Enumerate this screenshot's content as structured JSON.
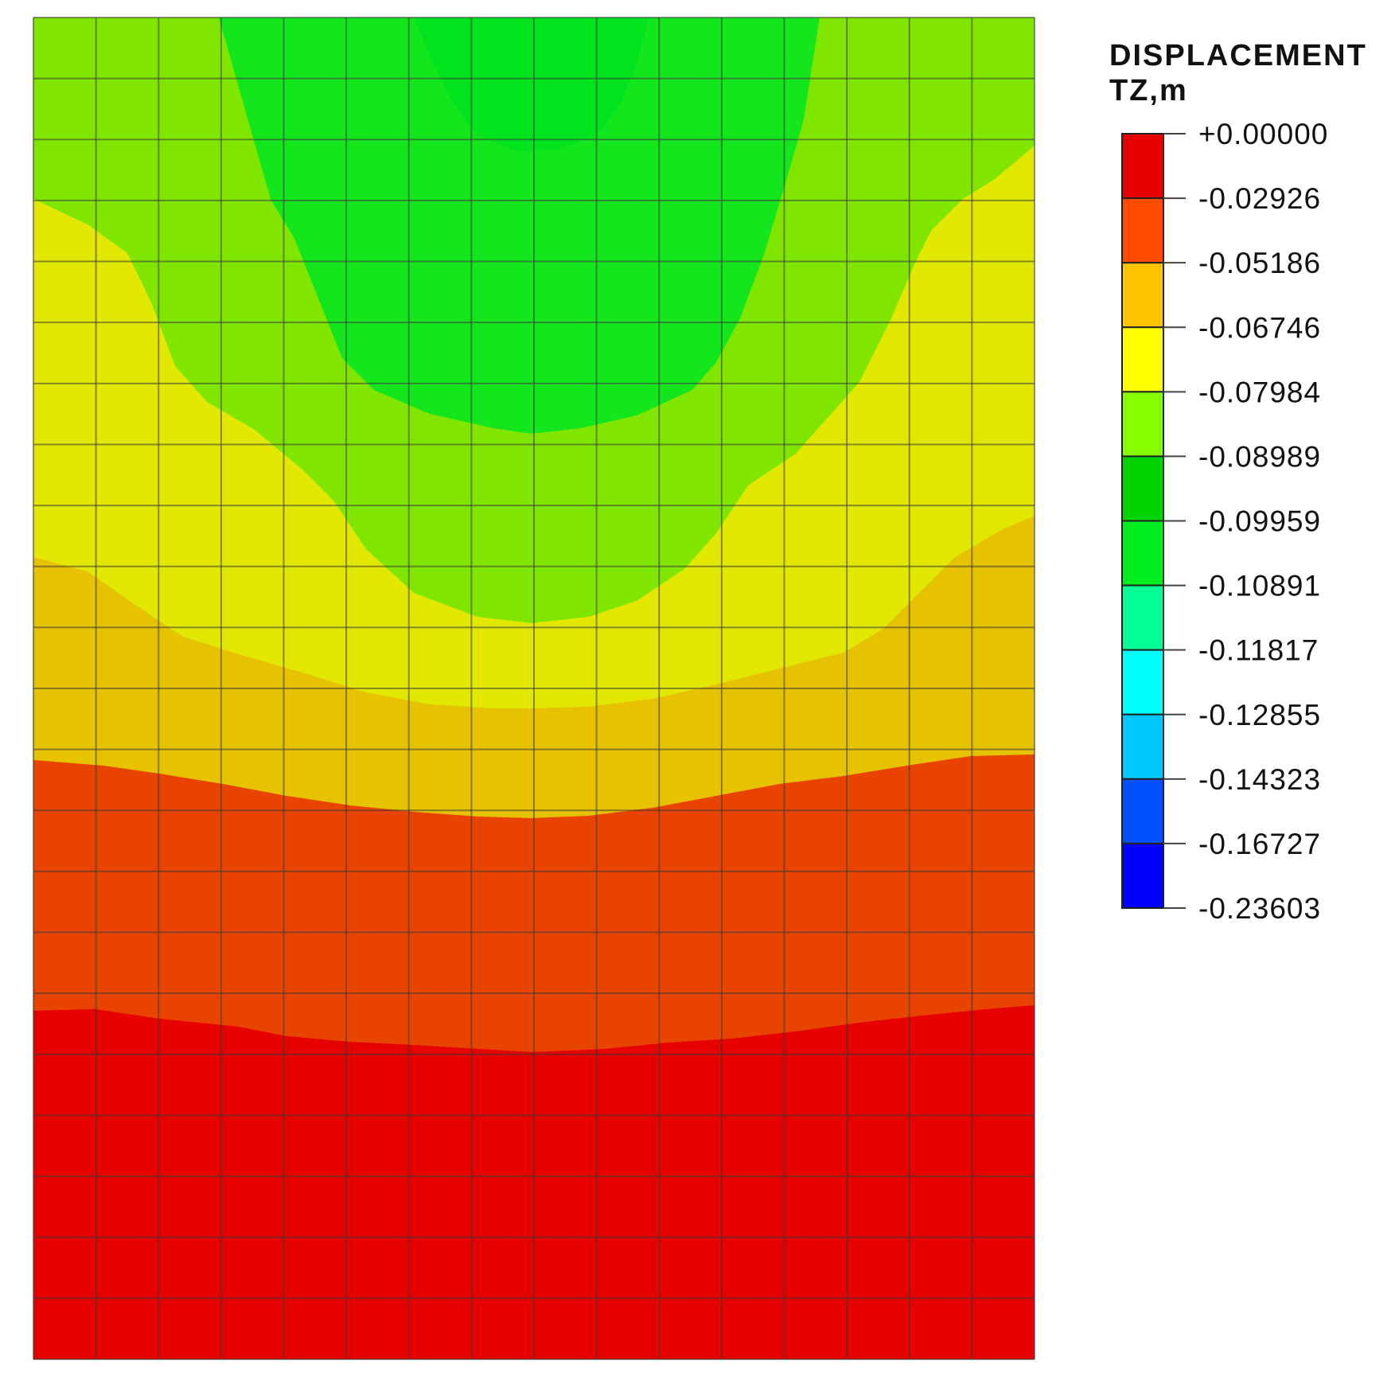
{
  "chart_data": {
    "type": "heatmap",
    "title": "",
    "colorbar": {
      "title_line1": "DISPLACEMENT",
      "title_line2": "TZ,m",
      "placement": "right",
      "ticks": [
        "+0.00000",
        "-0.02926",
        "-0.05186",
        "-0.06746",
        "-0.07984",
        "-0.08989",
        "-0.09959",
        "-0.10891",
        "-0.11817",
        "-0.12855",
        "-0.14323",
        "-0.16727",
        "-0.23603"
      ],
      "tick_values": [
        0.0,
        -0.02926,
        -0.05186,
        -0.06746,
        -0.07984,
        -0.08989,
        -0.09959,
        -0.10891,
        -0.11817,
        -0.12855,
        -0.14323,
        -0.16727,
        -0.23603
      ],
      "band_colors": [
        "#e80000",
        "#ff4a00",
        "#ffc400",
        "#ffff00",
        "#86ff00",
        "#00d400",
        "#00ee1e",
        "#00ff94",
        "#00ffff",
        "#00c8ff",
        "#0050ff",
        "#0000ff"
      ]
    },
    "contour_bands": [
      {
        "range": [
          0.0,
          -0.02926
        ],
        "color": "#e60000"
      },
      {
        "range": [
          -0.02926,
          -0.05186
        ],
        "color": "#e84400"
      },
      {
        "range": [
          -0.05186,
          -0.06746
        ],
        "color": "#e6c200"
      },
      {
        "range": [
          -0.06746,
          -0.07984
        ],
        "color": "#e2e800"
      },
      {
        "range": [
          -0.07984,
          -0.08989
        ],
        "color": "#80e600"
      },
      {
        "range": [
          -0.08989,
          -0.09959
        ],
        "color": "#14e61e"
      },
      {
        "range": [
          -0.09959,
          -0.10891
        ],
        "color": "#00e41e"
      }
    ],
    "mesh": {
      "columns": 16,
      "rows": 22
    },
    "grid": true
  }
}
